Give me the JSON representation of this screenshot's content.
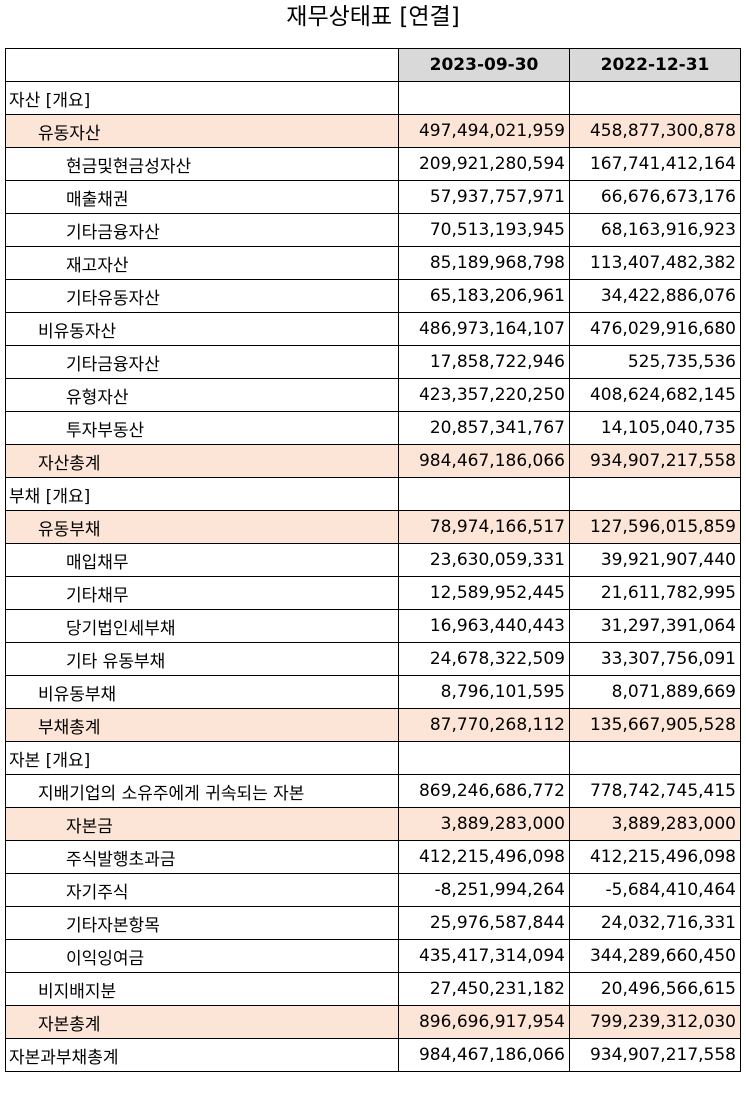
{
  "title": "재무상태표 [연결]",
  "columns": [
    "",
    "2023-09-30",
    "2022-12-31"
  ],
  "rows": [
    {
      "label": "자산 [개요]",
      "level": 0,
      "highlight": false,
      "v1": "",
      "v2": ""
    },
    {
      "label": "유동자산",
      "level": 1,
      "highlight": true,
      "v1": "497,494,021,959",
      "v2": "458,877,300,878"
    },
    {
      "label": "현금및현금성자산",
      "level": 2,
      "highlight": false,
      "v1": "209,921,280,594",
      "v2": "167,741,412,164"
    },
    {
      "label": "매출채권",
      "level": 2,
      "highlight": false,
      "v1": "57,937,757,971",
      "v2": "66,676,673,176"
    },
    {
      "label": "기타금융자산",
      "level": 2,
      "highlight": false,
      "v1": "70,513,193,945",
      "v2": "68,163,916,923"
    },
    {
      "label": "재고자산",
      "level": 2,
      "highlight": false,
      "v1": "85,189,968,798",
      "v2": "113,407,482,382"
    },
    {
      "label": "기타유동자산",
      "level": 2,
      "highlight": false,
      "v1": "65,183,206,961",
      "v2": "34,422,886,076"
    },
    {
      "label": "비유동자산",
      "level": 1,
      "highlight": false,
      "v1": "486,973,164,107",
      "v2": "476,029,916,680"
    },
    {
      "label": "기타금융자산",
      "level": 2,
      "highlight": false,
      "v1": "17,858,722,946",
      "v2": "525,735,536"
    },
    {
      "label": "유형자산",
      "level": 2,
      "highlight": false,
      "v1": "423,357,220,250",
      "v2": "408,624,682,145"
    },
    {
      "label": "투자부동산",
      "level": 2,
      "highlight": false,
      "v1": "20,857,341,767",
      "v2": "14,105,040,735"
    },
    {
      "label": "자산총계",
      "level": 1,
      "highlight": true,
      "v1": "984,467,186,066",
      "v2": "934,907,217,558"
    },
    {
      "label": "부채 [개요]",
      "level": 0,
      "highlight": false,
      "v1": "",
      "v2": ""
    },
    {
      "label": "유동부채",
      "level": 1,
      "highlight": true,
      "v1": "78,974,166,517",
      "v2": "127,596,015,859"
    },
    {
      "label": "매입채무",
      "level": 2,
      "highlight": false,
      "v1": "23,630,059,331",
      "v2": "39,921,907,440"
    },
    {
      "label": "기타채무",
      "level": 2,
      "highlight": false,
      "v1": "12,589,952,445",
      "v2": "21,611,782,995"
    },
    {
      "label": "당기법인세부채",
      "level": 2,
      "highlight": false,
      "v1": "16,963,440,443",
      "v2": "31,297,391,064"
    },
    {
      "label": "기타 유동부채",
      "level": 2,
      "highlight": false,
      "v1": "24,678,322,509",
      "v2": "33,307,756,091"
    },
    {
      "label": "비유동부채",
      "level": 1,
      "highlight": false,
      "v1": "8,796,101,595",
      "v2": "8,071,889,669"
    },
    {
      "label": "부채총계",
      "level": 1,
      "highlight": true,
      "v1": "87,770,268,112",
      "v2": "135,667,905,528"
    },
    {
      "label": "자본 [개요]",
      "level": 0,
      "highlight": false,
      "v1": "",
      "v2": ""
    },
    {
      "label": "지배기업의 소유주에게 귀속되는 자본",
      "level": 1,
      "highlight": false,
      "v1": "869,246,686,772",
      "v2": "778,742,745,415"
    },
    {
      "label": "자본금",
      "level": 2,
      "highlight": true,
      "v1": "3,889,283,000",
      "v2": "3,889,283,000"
    },
    {
      "label": "주식발행초과금",
      "level": 2,
      "highlight": false,
      "v1": "412,215,496,098",
      "v2": "412,215,496,098"
    },
    {
      "label": "자기주식",
      "level": 2,
      "highlight": false,
      "v1": "-8,251,994,264",
      "v2": "-5,684,410,464"
    },
    {
      "label": "기타자본항목",
      "level": 2,
      "highlight": false,
      "v1": "25,976,587,844",
      "v2": "24,032,716,331"
    },
    {
      "label": "이익잉여금",
      "level": 2,
      "highlight": false,
      "v1": "435,417,314,094",
      "v2": "344,289,660,450"
    },
    {
      "label": "비지배지분",
      "level": 1,
      "highlight": false,
      "v1": "27,450,231,182",
      "v2": "20,496,566,615"
    },
    {
      "label": "자본총계",
      "level": 1,
      "highlight": true,
      "v1": "896,696,917,954",
      "v2": "799,239,312,030"
    },
    {
      "label": "자본과부채총계",
      "level": 0,
      "highlight": false,
      "v1": "984,467,186,066",
      "v2": "934,907,217,558"
    }
  ]
}
